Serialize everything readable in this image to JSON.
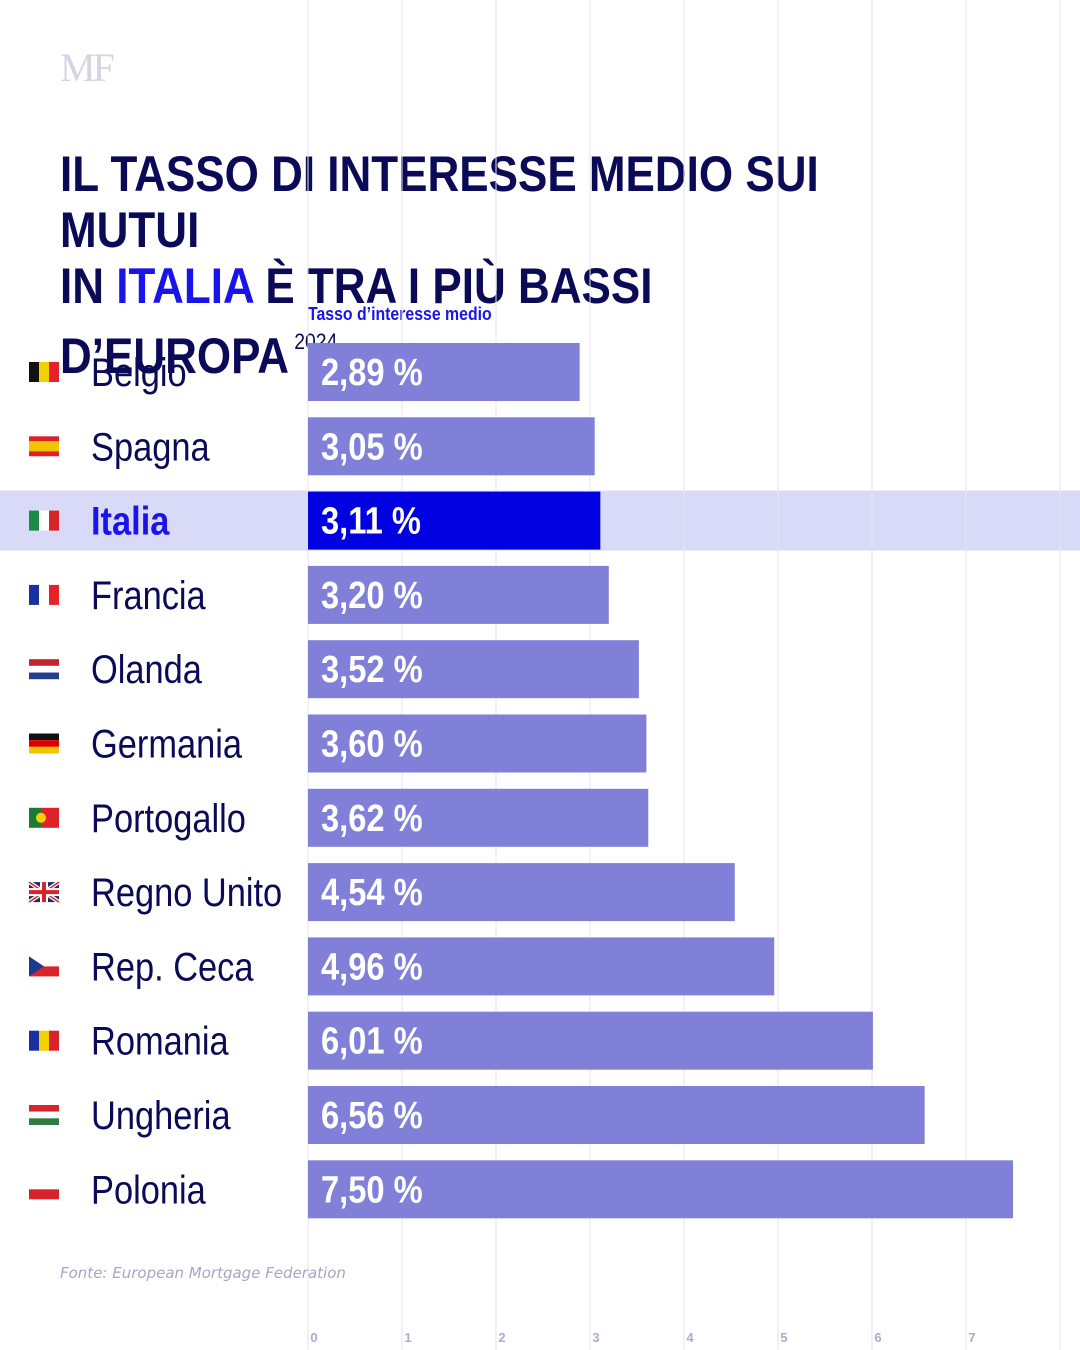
{
  "logo": "MF",
  "title": {
    "line1": "IL TASSO DI INTERESSE MEDIO SUI MUTUI",
    "line2_before": "IN ",
    "line2_highlight": "ITALIA",
    "line2_after": " È TRA I PIÙ BASSI D’EUROPA",
    "year": "2024"
  },
  "source": "Fonte: European Mortgage Federation",
  "colors": {
    "bar": "#8080d9",
    "bar_highlight": "#0000e0",
    "highlight_band": "#d9daf8",
    "label": "#0b0a57",
    "label_highlight": "#1a14e8"
  },
  "chart_data": {
    "type": "bar",
    "orientation": "horizontal",
    "xlabel": "Tasso d’interesse medio",
    "xlim": [
      0,
      8
    ],
    "ticks": [
      "0",
      "1",
      "2",
      "3",
      "4",
      "5",
      "6",
      "7"
    ],
    "grid": true,
    "highlight": "Italia",
    "categories": [
      "Belgio",
      "Spagna",
      "Italia",
      "Francia",
      "Olanda",
      "Germania",
      "Portogallo",
      "Regno Unito",
      "Rep. Ceca",
      "Romania",
      "Ungheria",
      "Polonia"
    ],
    "values": [
      2.89,
      3.05,
      3.11,
      3.2,
      3.52,
      3.6,
      3.62,
      4.54,
      4.96,
      6.01,
      6.56,
      7.5
    ],
    "value_labels": [
      "2,89 %",
      "3,05 %",
      "3,11 %",
      "3,20 %",
      "3,52 %",
      "3,60 %",
      "3,62 %",
      "4,54 %",
      "4,96 %",
      "6,01 %",
      "6,56 %",
      "7,50 %"
    ],
    "flags": [
      "belgium-flag",
      "spain-flag",
      "italy-flag",
      "france-flag",
      "netherlands-flag",
      "germany-flag",
      "portugal-flag",
      "uk-flag",
      "czech-flag",
      "romania-flag",
      "hungary-flag",
      "poland-flag"
    ]
  }
}
